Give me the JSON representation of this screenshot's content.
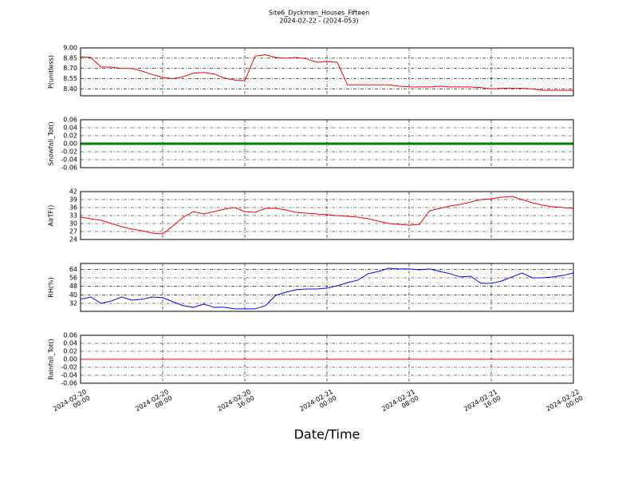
{
  "chart_data": [
    {
      "type": "line",
      "title": "Site6_Dyckman_Houses_Fifteen",
      "subtitle": "2024-02-22 - (2024-053)",
      "ylabel": "P(unitless)",
      "color": "#ff0000",
      "grid": true,
      "ylim": [
        8.3,
        9.0
      ],
      "yticks": [
        {
          "value": 8.4,
          "label": "8.40"
        },
        {
          "value": 8.55,
          "label": "8.55"
        },
        {
          "value": 8.7,
          "label": "8.70"
        },
        {
          "value": 8.85,
          "label": "8.85"
        },
        {
          "value": 9.0,
          "label": "9.00"
        }
      ],
      "x": [
        "2024-02-20 00:00",
        "2024-02-20 01:00",
        "2024-02-20 02:00",
        "2024-02-20 03:00",
        "2024-02-20 04:00",
        "2024-02-20 05:00",
        "2024-02-20 06:00",
        "2024-02-20 07:00",
        "2024-02-20 08:00",
        "2024-02-20 09:00",
        "2024-02-20 10:00",
        "2024-02-20 11:00",
        "2024-02-20 12:00",
        "2024-02-20 13:00",
        "2024-02-20 14:00",
        "2024-02-20 15:00",
        "2024-02-20 16:00",
        "2024-02-20 17:00",
        "2024-02-20 18:00",
        "2024-02-20 19:00",
        "2024-02-20 20:00",
        "2024-02-20 21:00",
        "2024-02-20 22:00",
        "2024-02-20 23:00",
        "2024-02-21 00:00",
        "2024-02-21 01:00",
        "2024-02-21 02:00",
        "2024-02-21 03:00",
        "2024-02-21 04:00",
        "2024-02-21 05:00",
        "2024-02-21 06:00",
        "2024-02-21 07:00",
        "2024-02-21 08:00",
        "2024-02-21 09:00",
        "2024-02-21 10:00",
        "2024-02-21 11:00",
        "2024-02-21 12:00",
        "2024-02-21 13:00",
        "2024-02-21 14:00",
        "2024-02-21 15:00",
        "2024-02-21 16:00",
        "2024-02-21 17:00",
        "2024-02-21 18:00",
        "2024-02-21 19:00",
        "2024-02-21 20:00",
        "2024-02-21 21:00",
        "2024-02-21 22:00",
        "2024-02-21 23:00",
        "2024-02-22 00:00"
      ],
      "values": [
        8.87,
        8.86,
        8.72,
        8.72,
        8.7,
        8.7,
        8.66,
        8.61,
        8.57,
        8.55,
        8.58,
        8.63,
        8.64,
        8.62,
        8.56,
        8.53,
        8.52,
        8.88,
        8.9,
        8.86,
        8.85,
        8.86,
        8.84,
        8.79,
        8.8,
        8.79,
        8.46,
        8.46,
        8.46,
        8.46,
        8.46,
        8.44,
        8.43,
        8.43,
        8.43,
        8.44,
        8.43,
        8.43,
        8.43,
        8.42,
        8.4,
        8.41,
        8.41,
        8.41,
        8.4,
        8.38,
        8.38,
        8.38,
        8.38
      ]
    },
    {
      "type": "line",
      "ylabel": "Snowfall_Tot()",
      "color": "#008000",
      "grid": true,
      "ylim": [
        -0.06,
        0.06
      ],
      "yticks": [
        -0.06,
        -0.04,
        -0.02,
        {
          "value": 0,
          "label": "0.00"
        },
        0.02,
        0.04,
        0.06
      ],
      "x": [
        "2024-02-20 00:00",
        "2024-02-22 00:00"
      ],
      "values": [
        0,
        0
      ]
    },
    {
      "type": "line",
      "ylabel": "AirTF()",
      "color": "#ff0000",
      "grid": true,
      "ylim": [
        24,
        42
      ],
      "yticks": [
        24,
        27,
        30,
        33,
        36,
        39,
        42
      ],
      "x": [
        "2024-02-20 00:00",
        "2024-02-20 01:00",
        "2024-02-20 02:00",
        "2024-02-20 03:00",
        "2024-02-20 04:00",
        "2024-02-20 05:00",
        "2024-02-20 06:00",
        "2024-02-20 07:00",
        "2024-02-20 08:00",
        "2024-02-20 09:00",
        "2024-02-20 10:00",
        "2024-02-20 11:00",
        "2024-02-20 12:00",
        "2024-02-20 13:00",
        "2024-02-20 14:00",
        "2024-02-20 15:00",
        "2024-02-20 16:00",
        "2024-02-20 17:00",
        "2024-02-20 18:00",
        "2024-02-20 19:00",
        "2024-02-20 20:00",
        "2024-02-20 21:00",
        "2024-02-20 22:00",
        "2024-02-20 23:00",
        "2024-02-21 00:00",
        "2024-02-21 01:00",
        "2024-02-21 02:00",
        "2024-02-21 03:00",
        "2024-02-21 04:00",
        "2024-02-21 05:00",
        "2024-02-21 06:00",
        "2024-02-21 07:00",
        "2024-02-21 08:00",
        "2024-02-21 09:00",
        "2024-02-21 10:00",
        "2024-02-21 11:00",
        "2024-02-21 12:00",
        "2024-02-21 13:00",
        "2024-02-21 14:00",
        "2024-02-21 15:00",
        "2024-02-21 16:00",
        "2024-02-21 17:00",
        "2024-02-21 18:00",
        "2024-02-21 19:00",
        "2024-02-21 20:00",
        "2024-02-21 21:00",
        "2024-02-21 22:00",
        "2024-02-21 23:00",
        "2024-02-22 00:00"
      ],
      "values": [
        32.4,
        31.8,
        31.2,
        30,
        28.8,
        27.9,
        27.3,
        26.4,
        26.1,
        29.1,
        32.4,
        34.5,
        33.6,
        34.5,
        35.4,
        36,
        34.5,
        34.2,
        35.7,
        35.7,
        35.1,
        34.2,
        33.9,
        33.6,
        33.3,
        33,
        32.7,
        32.4,
        31.8,
        30.9,
        30,
        29.7,
        29.4,
        29.7,
        34.8,
        35.7,
        36.6,
        37.2,
        38.1,
        39,
        39.3,
        39.9,
        40.2,
        39,
        37.8,
        36.9,
        36.3,
        36,
        35.7
      ]
    },
    {
      "type": "line",
      "ylabel": "RH(%)",
      "color": "#0000ff",
      "grid": true,
      "ylim": [
        24.5,
        69.5
      ],
      "yticks": [
        32,
        40,
        48,
        56,
        64
      ],
      "x": [
        "2024-02-20 00:00",
        "2024-02-20 01:00",
        "2024-02-20 02:00",
        "2024-02-20 03:00",
        "2024-02-20 04:00",
        "2024-02-20 05:00",
        "2024-02-20 06:00",
        "2024-02-20 07:00",
        "2024-02-20 08:00",
        "2024-02-20 09:00",
        "2024-02-20 10:00",
        "2024-02-20 11:00",
        "2024-02-20 12:00",
        "2024-02-20 13:00",
        "2024-02-20 14:00",
        "2024-02-20 15:00",
        "2024-02-20 16:00",
        "2024-02-20 17:00",
        "2024-02-20 18:00",
        "2024-02-20 19:00",
        "2024-02-20 20:00",
        "2024-02-20 21:00",
        "2024-02-20 22:00",
        "2024-02-20 23:00",
        "2024-02-21 00:00",
        "2024-02-21 01:00",
        "2024-02-21 02:00",
        "2024-02-21 03:00",
        "2024-02-21 04:00",
        "2024-02-21 05:00",
        "2024-02-21 06:00",
        "2024-02-21 07:00",
        "2024-02-21 08:00",
        "2024-02-21 09:00",
        "2024-02-21 10:00",
        "2024-02-21 11:00",
        "2024-02-21 12:00",
        "2024-02-21 13:00",
        "2024-02-21 14:00",
        "2024-02-21 15:00",
        "2024-02-21 16:00",
        "2024-02-21 17:00",
        "2024-02-21 18:00",
        "2024-02-21 19:00",
        "2024-02-21 20:00",
        "2024-02-21 21:00",
        "2024-02-21 22:00",
        "2024-02-21 23:00",
        "2024-02-22 00:00"
      ],
      "values": [
        35.8,
        38,
        32,
        34.2,
        38,
        35,
        35.8,
        38,
        37.3,
        33.5,
        29.8,
        28.3,
        31.3,
        28.3,
        28.3,
        26.8,
        26.8,
        26.8,
        29.8,
        39.5,
        42.5,
        44.8,
        45.5,
        45.5,
        46.3,
        48.5,
        51.5,
        53.8,
        59.8,
        62,
        65,
        64.3,
        64.3,
        63.5,
        64.3,
        62,
        59.8,
        56.8,
        57.5,
        50.8,
        50.8,
        53,
        56.8,
        60.5,
        56,
        56,
        56.8,
        58.3,
        60.5
      ]
    },
    {
      "type": "line",
      "ylabel": "Rainfall_Tot()",
      "xlabel": "Date/Time",
      "color": "#ff0000",
      "grid": true,
      "ylim": [
        -0.06,
        0.06
      ],
      "yticks": [
        -0.06,
        -0.04,
        -0.02,
        {
          "value": 0,
          "label": "0.00"
        },
        0.02,
        0.04,
        0.06
      ],
      "xlim": [
        "2024-02-20 00:00",
        "2024-02-22 00:00"
      ],
      "xticks": [
        {
          "value": "2024-02-20 00:00",
          "label": "2024-02-20\n00:00"
        },
        {
          "value": "2024-02-20 08:00",
          "label": "2024-02-20\n08:00"
        },
        {
          "value": "2024-02-20 16:00",
          "label": "2024-02-20\n16:00"
        },
        {
          "value": "2024-02-21 00:00",
          "label": "2024-02-21\n00:00"
        },
        {
          "value": "2024-02-21 08:00",
          "label": "2024-02-21\n08:00"
        },
        {
          "value": "2024-02-21 16:00",
          "label": "2024-02-21\n16:00"
        },
        {
          "value": "2024-02-22 00:00",
          "label": "2024-02-22\n00:00"
        }
      ],
      "x": [
        "2024-02-20 00:00",
        "2024-02-22 00:00"
      ],
      "values": [
        0,
        0
      ]
    }
  ]
}
